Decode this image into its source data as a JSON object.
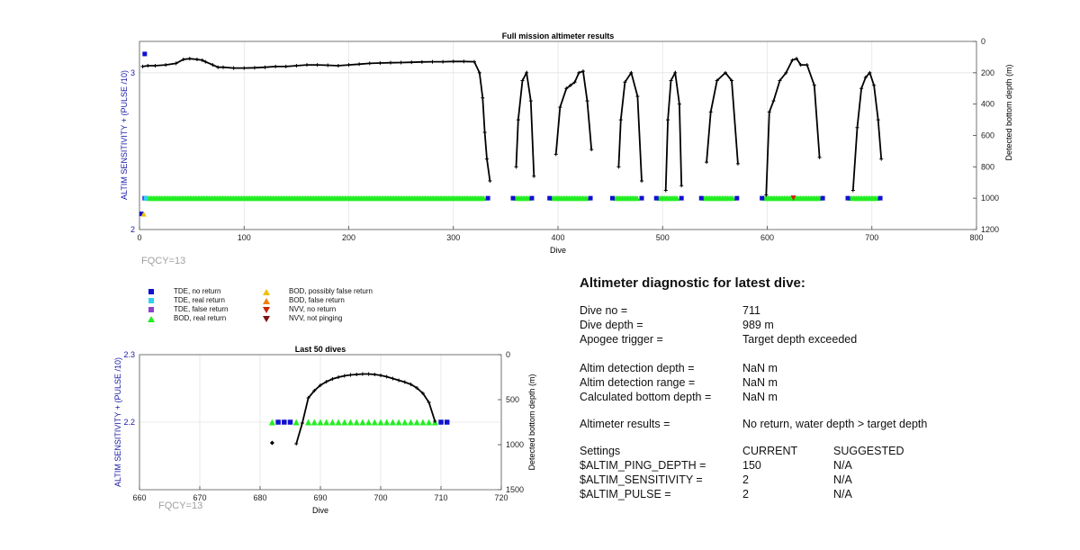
{
  "chart_data": [
    {
      "type": "scatter",
      "title": "Full mission altimeter results",
      "xlabel": "Dive",
      "ylabel_left": "ALTIM SENSITIVITY + (PULSE /10)",
      "ylabel_right": "Detected bottom depth (m)",
      "xlim": [
        0,
        800
      ],
      "ylim_left": [
        2,
        3.2
      ],
      "ylim_right": [
        0,
        1200
      ],
      "right_axis_reversed": true,
      "xticks": [
        "0",
        "100",
        "200",
        "300",
        "400",
        "500",
        "600",
        "700",
        "800"
      ],
      "yticks_left": [
        "2",
        "3"
      ],
      "yticks_right": [
        "0",
        "200",
        "400",
        "600",
        "800",
        "1000",
        "1200"
      ],
      "grid": true,
      "annotation": "FQCY=13",
      "series": [
        {
          "name": "Detected bottom depth",
          "color": "#000000",
          "segments": [
            {
              "x": [
                3,
                8,
                15,
                25,
                35,
                42,
                48,
                55,
                60,
                63,
                70,
                75,
                80,
                90,
                100,
                110,
                120,
                130,
                140,
                150,
                160,
                170,
                180,
                190,
                200,
                210,
                220,
                230,
                240,
                250,
                260,
                270,
                280,
                290,
                300,
                310,
                320,
                325,
                328,
                330,
                332,
                335
              ],
              "y": [
                160,
                155,
                155,
                150,
                140,
                115,
                110,
                115,
                120,
                130,
                150,
                165,
                165,
                170,
                170,
                168,
                165,
                160,
                160,
                155,
                150,
                150,
                152,
                155,
                150,
                145,
                140,
                138,
                136,
                135,
                133,
                131,
                130,
                130,
                128,
                128,
                130,
                200,
                360,
                580,
                750,
                890
              ]
            },
            {
              "x": [
                360,
                362,
                366,
                370,
                374,
                377
              ],
              "y": [
                800,
                500,
                250,
                200,
                380,
                860
              ]
            },
            {
              "x": [
                398,
                402,
                408,
                412,
                416,
                420,
                424,
                428,
                432
              ],
              "y": [
                720,
                420,
                300,
                280,
                260,
                200,
                190,
                380,
                690
              ]
            },
            {
              "x": [
                458,
                460,
                464,
                470,
                476,
                480
              ],
              "y": [
                800,
                500,
                260,
                200,
                350,
                890
              ]
            },
            {
              "x": [
                503,
                505,
                508,
                512,
                516,
                518
              ],
              "y": [
                950,
                500,
                250,
                200,
                400,
                920
              ]
            },
            {
              "x": [
                542,
                546,
                552,
                560,
                566,
                572
              ],
              "y": [
                770,
                450,
                250,
                200,
                250,
                780
              ]
            },
            {
              "x": [
                599,
                602,
                606,
                612,
                618,
                624,
                628,
                632,
                638,
                645,
                650
              ],
              "y": [
                980,
                450,
                380,
                250,
                200,
                120,
                110,
                150,
                150,
                280,
                740
              ]
            },
            {
              "x": [
                682,
                686,
                690,
                694,
                698,
                702,
                706,
                709
              ],
              "y": [
                950,
                550,
                300,
                230,
                200,
                280,
                500,
                750
              ]
            }
          ]
        },
        {
          "name": "TDE, no return",
          "color": "#1010d0",
          "marker": "square"
        },
        {
          "name": "TDE, real return",
          "color": "#30d0f0",
          "marker": "square"
        },
        {
          "name": "TDE, false return",
          "color": "#9040d0",
          "marker": "square"
        },
        {
          "name": "BOD, real return",
          "color": "#22ee22",
          "marker": "triangle-up",
          "x_ranges": [
            [
              8,
              330
            ],
            [
              360,
              372
            ],
            [
              395,
              428
            ],
            [
              455,
              477
            ],
            [
              497,
              515
            ],
            [
              540,
              568
            ],
            [
              598,
              650
            ],
            [
              680,
              705
            ]
          ],
          "y": 2.2
        },
        {
          "name": "BOD, possibly false return",
          "color": "#f0c000",
          "marker": "triangle-up"
        },
        {
          "name": "BOD, false return",
          "color": "#f08000",
          "marker": "triangle-up"
        },
        {
          "name": "NVV, no return",
          "color": "#d02000",
          "marker": "triangle-down"
        },
        {
          "name": "NVV, not pinging",
          "color": "#801010",
          "marker": "triangle-down"
        }
      ]
    },
    {
      "type": "scatter",
      "title": "Last 50 dives",
      "xlabel": "Dive",
      "ylabel_left": "ALTIM SENSITIVITY + (PULSE /10)",
      "ylabel_right": "Detected bottom depth (m)",
      "xlim": [
        660,
        720
      ],
      "ylim_left": [
        2.1,
        2.3
      ],
      "ylim_right": [
        0,
        1500
      ],
      "right_axis_reversed": true,
      "xticks": [
        "660",
        "670",
        "680",
        "690",
        "700",
        "710",
        "720"
      ],
      "yticks_left": [
        "2.2",
        "2.3"
      ],
      "yticks_right": [
        "0",
        "500",
        "1000",
        "1500"
      ],
      "grid": true,
      "annotation": "FQCY=13",
      "depth_x": [
        686,
        687,
        688,
        689,
        690,
        691,
        692,
        693,
        694,
        695,
        696,
        697,
        698,
        699,
        700,
        701,
        702,
        703,
        704,
        705,
        706,
        707,
        708,
        709
      ],
      "depth_y": [
        990,
        760,
        480,
        400,
        340,
        300,
        270,
        250,
        235,
        225,
        220,
        215,
        215,
        220,
        230,
        245,
        265,
        285,
        305,
        330,
        370,
        430,
        530,
        740
      ],
      "isolated_depth": {
        "x": 682,
        "y": 980
      },
      "tde_no_return_x": [
        683,
        684,
        685,
        710,
        711
      ],
      "bod_real_x": [
        682,
        686,
        688,
        689,
        690,
        691,
        692,
        693,
        694,
        695,
        696,
        697,
        698,
        699,
        700,
        701,
        702,
        703,
        704,
        705,
        706,
        707,
        708,
        709
      ],
      "marker_y": 2.2
    }
  ],
  "legend": [
    {
      "label": "TDE, no return",
      "color": "#1010d0",
      "marker": "square"
    },
    {
      "label": "TDE, real return",
      "color": "#30d0f0",
      "marker": "square"
    },
    {
      "label": "TDE, false return",
      "color": "#9040d0",
      "marker": "square"
    },
    {
      "label": "BOD, real return",
      "color": "#22ee22",
      "marker": "triangle-up"
    },
    {
      "label": "BOD, possibly false return",
      "color": "#f0c000",
      "marker": "triangle-up"
    },
    {
      "label": "BOD, false return",
      "color": "#f08000",
      "marker": "triangle-up"
    },
    {
      "label": "NVV, no return",
      "color": "#d02000",
      "marker": "triangle-down"
    },
    {
      "label": "NVV, not pinging",
      "color": "#801010",
      "marker": "triangle-down"
    }
  ],
  "diagnostic": {
    "title": "Altimeter diagnostic for latest dive:",
    "rows": [
      {
        "label": "Dive no =",
        "value": "711"
      },
      {
        "label": "Dive depth =",
        "value": "989 m"
      },
      {
        "label": "Apogee trigger =",
        "value": "Target depth exceeded"
      },
      {
        "label": "Altim detection depth =",
        "value": "NaN m"
      },
      {
        "label": "Altim detection range =",
        "value": "NaN m"
      },
      {
        "label": "Calculated bottom depth =",
        "value": "NaN m"
      },
      {
        "label": "Altimeter results =",
        "value": "No return, water depth > target depth"
      }
    ],
    "settings_header": {
      "label": "Settings",
      "current": "CURRENT",
      "suggested": "SUGGESTED"
    },
    "settings": [
      {
        "label": "$ALTIM_PING_DEPTH =",
        "current": "150",
        "suggested": "N/A"
      },
      {
        "label": "$ALTIM_SENSITIVITY =",
        "current": "2",
        "suggested": "N/A"
      },
      {
        "label": "$ALTIM_PULSE =",
        "current": "2",
        "suggested": "N/A"
      }
    ]
  }
}
